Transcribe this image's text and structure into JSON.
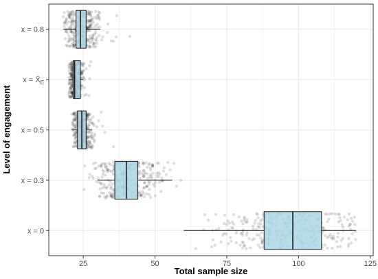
{
  "chart_data": {
    "type": "boxplot",
    "orientation": "horizontal",
    "xlabel": "Total sample size",
    "ylabel": "Level of engagement",
    "xlim": [
      13,
      126
    ],
    "x_ticks": [
      25,
      50,
      75,
      100,
      125
    ],
    "x_tick_labels": [
      "25",
      "50",
      "75",
      "100",
      "125"
    ],
    "grid": true,
    "legend": "none",
    "colors": {
      "box_fill": "#add8e6",
      "box_stroke": "#1a1a1a",
      "point": "#000000",
      "grid": "#ebebeb",
      "panel_border": "#333333"
    },
    "categories": [
      {
        "label": "x = 0.8",
        "display": {
          "base": "x = 0.8",
          "sub": ""
        },
        "stats": {
          "whisker_low": 18,
          "q1": 22.5,
          "median": 24,
          "q3": 26,
          "whisker_high": 31
        },
        "points": {
          "min": 18,
          "max": 42,
          "median": 24,
          "spread": 3.2
        }
      },
      {
        "label": "x = X̄E",
        "display": {
          "base": "x = X̄",
          "sub": "E"
        },
        "stats": {
          "whisker_low": 20,
          "q1": 21.5,
          "median": 22,
          "q3": 24,
          "whisker_high": 25
        },
        "points": {
          "min": 20,
          "max": 28,
          "median": 22,
          "spread": 1.4
        }
      },
      {
        "label": "x = 0.5",
        "display": {
          "base": "x = 0.5",
          "sub": ""
        },
        "stats": {
          "whisker_low": 21,
          "q1": 23,
          "median": 24.5,
          "q3": 26,
          "whisker_high": 28
        },
        "points": {
          "min": 21,
          "max": 37,
          "median": 24.5,
          "spread": 2.0
        }
      },
      {
        "label": "x = 0.3",
        "display": {
          "base": "x = 0.3",
          "sub": ""
        },
        "stats": {
          "whisker_low": 30,
          "q1": 36,
          "median": 40,
          "q3": 44,
          "whisker_high": 56
        },
        "points": {
          "min": 25,
          "max": 60,
          "median": 40,
          "spread": 6.0
        }
      },
      {
        "label": "x = 0",
        "display": {
          "base": "x = 0",
          "sub": ""
        },
        "stats": {
          "whisker_low": 60,
          "q1": 88,
          "median": 98,
          "q3": 108,
          "whisker_high": 120
        },
        "points": {
          "min": 60,
          "max": 120,
          "median": 98,
          "spread": 13.0
        }
      }
    ]
  }
}
